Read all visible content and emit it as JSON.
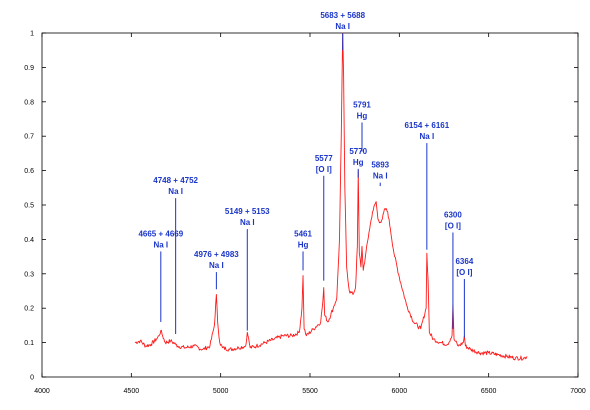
{
  "colors": {
    "spectrum": "#ff1a1a",
    "annotation": "#1a35c9",
    "axis": "#000000",
    "background": "#ffffff"
  },
  "chart_data": {
    "type": "line",
    "title": "",
    "xlabel": "",
    "ylabel": "",
    "xlim": [
      4000,
      7000
    ],
    "ylim": [
      0,
      1
    ],
    "xticks": [
      4000,
      4500,
      5000,
      5500,
      6000,
      6500,
      7000
    ],
    "yticks": [
      0,
      0.1,
      0.2,
      0.3,
      0.4,
      0.5,
      0.6,
      0.7,
      0.8,
      0.9,
      1
    ],
    "ytick_labels": [
      "0",
      "0.1",
      "0.2",
      "0.3",
      "0.4",
      "0.5",
      "0.6",
      "0.7",
      "0.8",
      "0.9",
      "1"
    ],
    "grid": false,
    "legend": "none",
    "series": [
      {
        "x": [
          4520,
          4550,
          4580,
          4610,
          4640,
          4655,
          4665,
          4675,
          4690,
          4720,
          4748,
          4760,
          4800,
          4850,
          4900,
          4940,
          4965,
          4976,
          4983,
          4995,
          5010,
          5050,
          5100,
          5140,
          5149,
          5153,
          5165,
          5200,
          5250,
          5300,
          5350,
          5400,
          5440,
          5455,
          5461,
          5467,
          5480,
          5520,
          5560,
          5572,
          5577,
          5582,
          5600,
          5630,
          5650,
          5665,
          5675,
          5683,
          5688,
          5695,
          5705,
          5720,
          5740,
          5755,
          5765,
          5770,
          5776,
          5785,
          5791,
          5798,
          5810,
          5830,
          5850,
          5870,
          5880,
          5893,
          5905,
          5920,
          5935,
          5950,
          5970,
          6000,
          6040,
          6080,
          6120,
          6150,
          6154,
          6161,
          6168,
          6190,
          6230,
          6270,
          6295,
          6300,
          6306,
          6330,
          6358,
          6364,
          6370,
          6400,
          6450,
          6500,
          6550,
          6600,
          6650,
          6700,
          6715
        ],
        "values": [
          0.1,
          0.105,
          0.09,
          0.095,
          0.11,
          0.12,
          0.135,
          0.12,
          0.1,
          0.105,
          0.095,
          0.09,
          0.085,
          0.09,
          0.08,
          0.09,
          0.15,
          0.24,
          0.16,
          0.1,
          0.085,
          0.08,
          0.085,
          0.09,
          0.13,
          0.12,
          0.085,
          0.09,
          0.1,
          0.11,
          0.12,
          0.12,
          0.13,
          0.2,
          0.295,
          0.14,
          0.12,
          0.14,
          0.16,
          0.22,
          0.26,
          0.18,
          0.16,
          0.2,
          0.23,
          0.4,
          0.7,
          1.0,
          0.88,
          0.55,
          0.32,
          0.25,
          0.24,
          0.26,
          0.38,
          0.6,
          0.36,
          0.32,
          0.38,
          0.31,
          0.35,
          0.42,
          0.48,
          0.51,
          0.46,
          0.45,
          0.46,
          0.49,
          0.48,
          0.43,
          0.36,
          0.29,
          0.21,
          0.16,
          0.14,
          0.2,
          0.36,
          0.28,
          0.13,
          0.11,
          0.1,
          0.095,
          0.12,
          0.21,
          0.11,
          0.09,
          0.1,
          0.12,
          0.09,
          0.08,
          0.07,
          0.07,
          0.065,
          0.06,
          0.055,
          0.055,
          0.06
        ]
      }
    ],
    "annotations": [
      {
        "x": 4665,
        "line_from": 0.16,
        "line_to": 0.365,
        "lines": [
          "4665 + 4669",
          "Na I"
        ]
      },
      {
        "x": 4748,
        "line_from": 0.125,
        "line_to": 0.52,
        "lines": [
          "4748 + 4752",
          "Na I"
        ]
      },
      {
        "x": 4976,
        "line_from": 0.255,
        "line_to": 0.305,
        "lines": [
          "4976 + 4983",
          "Na I"
        ]
      },
      {
        "x": 5149,
        "line_from": 0.135,
        "line_to": 0.43,
        "lines": [
          "5149 + 5153",
          "Na I"
        ]
      },
      {
        "x": 5461,
        "line_from": 0.31,
        "line_to": 0.365,
        "lines": [
          "5461",
          "Hg"
        ]
      },
      {
        "x": 5577,
        "line_from": 0.28,
        "line_to": 0.585,
        "lines": [
          "5577",
          "[O I]"
        ]
      },
      {
        "x": 5683,
        "line_from": 0.95,
        "line_to": 1.0,
        "lines": [
          "5683 + 5688",
          "Na I"
        ]
      },
      {
        "x": 5791,
        "line_from": 0.655,
        "line_to": 0.74,
        "lines": [
          "5791",
          "Hg"
        ]
      },
      {
        "x": 5770,
        "line_from": 0.58,
        "line_to": 0.605,
        "lines": [
          "5770",
          "Hg"
        ]
      },
      {
        "x": 5893,
        "line_from": 0.555,
        "line_to": 0.565,
        "lines": [
          "5893",
          "Na I"
        ]
      },
      {
        "x": 6154,
        "line_from": 0.37,
        "line_to": 0.68,
        "lines": [
          "6154 + 6161",
          "Na I"
        ]
      },
      {
        "x": 6300,
        "line_from": 0.14,
        "line_to": 0.42,
        "lines": [
          "6300",
          "[O I]"
        ]
      },
      {
        "x": 6364,
        "line_from": 0.115,
        "line_to": 0.285,
        "lines": [
          "6364",
          "[O I]"
        ]
      }
    ]
  }
}
